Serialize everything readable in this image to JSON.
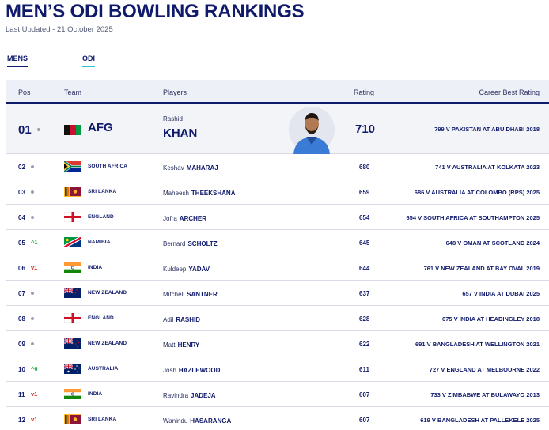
{
  "page": {
    "title": "MEN’S ODI BOWLING RANKINGS",
    "updated": "Last Updated - 21 October 2025"
  },
  "tabs": {
    "mens": "MENS",
    "odi": "ODI"
  },
  "columns": {
    "pos": "Pos",
    "team": "Team",
    "players": "Players",
    "rating": "Rating",
    "career": "Career Best Rating"
  },
  "top": {
    "pos": "01",
    "team": "AFG",
    "first": "Rashid",
    "last": "KHAN",
    "rating": "710",
    "career": "799 V PAKISTAN AT ABU DHABI 2018",
    "flag": "afghanistan-flag-icon"
  },
  "rows": [
    {
      "pos": "02",
      "move": "",
      "dir": "same",
      "team": "SOUTH AFRICA",
      "first": "Keshav",
      "last": "MAHARAJ",
      "rating": "680",
      "career": "741 V AUSTRALIA AT KOLKATA 2023",
      "flag": "south-africa-flag-icon"
    },
    {
      "pos": "03",
      "move": "",
      "dir": "same",
      "team": "SRI LANKA",
      "first": "Maheesh",
      "last": "THEEKSHANA",
      "rating": "659",
      "career": "686 V AUSTRALIA AT COLOMBO (RPS) 2025",
      "flag": "sri-lanka-flag-icon"
    },
    {
      "pos": "04",
      "move": "",
      "dir": "same",
      "team": "ENGLAND",
      "first": "Jofra",
      "last": "ARCHER",
      "rating": "654",
      "career": "654 V SOUTH AFRICA AT SOUTHAMPTON 2025",
      "flag": "england-flag-icon"
    },
    {
      "pos": "05",
      "move": "^1",
      "dir": "up",
      "team": "NAMIBIA",
      "first": "Bernard",
      "last": "SCHOLTZ",
      "rating": "645",
      "career": "648 V OMAN AT SCOTLAND 2024",
      "flag": "namibia-flag-icon"
    },
    {
      "pos": "06",
      "move": "v1",
      "dir": "down",
      "team": "INDIA",
      "first": "Kuldeep",
      "last": "YADAV",
      "rating": "644",
      "career": "761 V NEW ZEALAND AT BAY OVAL 2019",
      "flag": "india-flag-icon"
    },
    {
      "pos": "07",
      "move": "",
      "dir": "same",
      "team": "NEW ZEALAND",
      "first": "Mitchell",
      "last": "SANTNER",
      "rating": "637",
      "career": "657 V INDIA AT DUBAI 2025",
      "flag": "new-zealand-flag-icon"
    },
    {
      "pos": "08",
      "move": "",
      "dir": "same",
      "team": "ENGLAND",
      "first": "Adil",
      "last": "RASHID",
      "rating": "628",
      "career": "675 V INDIA AT HEADINGLEY 2018",
      "flag": "england-flag-icon"
    },
    {
      "pos": "09",
      "move": "",
      "dir": "same",
      "team": "NEW ZEALAND",
      "first": "Matt",
      "last": "HENRY",
      "rating": "622",
      "career": "691 V BANGLADESH AT WELLINGTON 2021",
      "flag": "new-zealand-flag-icon"
    },
    {
      "pos": "10",
      "move": "^6",
      "dir": "up",
      "team": "AUSTRALIA",
      "first": "Josh",
      "last": "HAZLEWOOD",
      "rating": "611",
      "career": "727 V ENGLAND AT MELBOURNE 2022",
      "flag": "australia-flag-icon"
    },
    {
      "pos": "11",
      "move": "v1",
      "dir": "down",
      "team": "INDIA",
      "first": "Ravindra",
      "last": "JADEJA",
      "rating": "607",
      "career": "733 V ZIMBABWE AT BULAWAYO 2013",
      "flag": "india-flag-icon"
    },
    {
      "pos": "12",
      "move": "v1",
      "dir": "down",
      "team": "SRI LANKA",
      "first": "Wanindu",
      "last": "HASARANGA",
      "rating": "607",
      "career": "619 V BANGLADESH AT PALLEKELE 2025",
      "flag": "sri-lanka-flag-icon"
    }
  ]
}
